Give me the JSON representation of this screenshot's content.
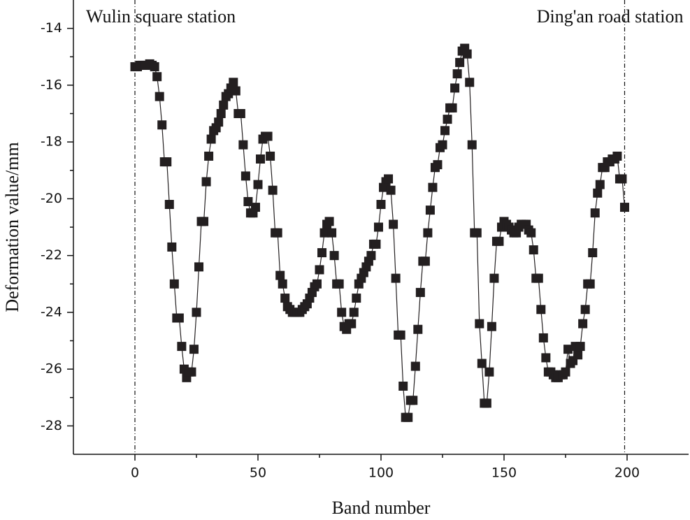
{
  "chart_data": {
    "type": "line",
    "xlabel": "Band number",
    "ylabel": "Deformation value/mm",
    "xlim": [
      -25,
      225
    ],
    "xticks": [
      0,
      50,
      100,
      150,
      200
    ],
    "xminor": [
      25,
      75,
      125,
      175
    ],
    "ylim": [
      -29,
      -13
    ],
    "yticks": [
      -14,
      -16,
      -18,
      -20,
      -22,
      -24,
      -26,
      -28
    ],
    "yminor": [
      -15,
      -17,
      -19,
      -21,
      -23,
      -25,
      -27
    ],
    "annotations": [
      {
        "text": "Wulin square station",
        "x": 0
      },
      {
        "text": "Ding'an road station",
        "x": 199
      }
    ],
    "series": [
      {
        "color": "#231f20",
        "x": [
          0,
          1,
          2,
          3,
          4,
          5,
          6,
          7,
          8,
          9,
          10,
          11,
          12,
          13,
          14,
          15,
          16,
          17,
          18,
          19,
          20,
          21,
          22,
          23,
          24,
          25,
          26,
          27,
          28,
          29,
          30,
          31,
          32,
          33,
          34,
          35,
          36,
          37,
          38,
          39,
          40,
          41,
          42,
          43,
          44,
          45,
          46,
          47,
          48,
          49,
          50,
          51,
          52,
          53,
          54,
          55,
          56,
          57,
          58,
          59,
          60,
          61,
          62,
          63,
          64,
          65,
          66,
          67,
          68,
          69,
          70,
          71,
          72,
          73,
          74,
          75,
          76,
          77,
          78,
          79,
          80,
          81,
          82,
          83,
          84,
          85,
          86,
          87,
          88,
          89,
          90,
          91,
          92,
          93,
          94,
          95,
          96,
          97,
          98,
          99,
          100,
          101,
          102,
          103,
          104,
          105,
          106,
          107,
          108,
          109,
          110,
          111,
          112,
          113,
          114,
          115,
          116,
          117,
          118,
          119,
          120,
          121,
          122,
          123,
          124,
          125,
          126,
          127,
          128,
          129,
          130,
          131,
          132,
          133,
          134,
          135,
          136,
          137,
          138,
          139,
          140,
          141,
          142,
          143,
          144,
          145,
          146,
          147,
          148,
          149,
          150,
          151,
          152,
          153,
          154,
          155,
          156,
          157,
          158,
          159,
          160,
          161,
          162,
          163,
          164,
          165,
          166,
          167,
          168,
          169,
          170,
          171,
          172,
          173,
          174,
          175,
          176,
          177,
          178,
          179,
          180,
          181,
          182,
          183,
          184,
          185,
          186,
          187,
          188,
          189,
          190,
          191,
          192,
          193,
          194,
          195,
          196,
          197,
          198,
          199
        ],
        "values": [
          -15.35,
          -15.35,
          -15.3,
          -15.3,
          -15.3,
          -15.3,
          -15.25,
          -15.3,
          -15.35,
          -15.7,
          -16.4,
          -17.4,
          -18.7,
          -18.7,
          -20.2,
          -21.7,
          -23.0,
          -24.2,
          -24.2,
          -25.2,
          -26.0,
          -26.3,
          -26.1,
          -26.1,
          -25.3,
          -24.0,
          -22.4,
          -20.8,
          -20.8,
          -19.4,
          -18.5,
          -17.9,
          -17.6,
          -17.5,
          -17.3,
          -17.0,
          -16.7,
          -16.4,
          -16.3,
          -16.1,
          -15.9,
          -16.2,
          -17.0,
          -17.0,
          -18.1,
          -19.2,
          -20.1,
          -20.5,
          -20.5,
          -20.3,
          -19.5,
          -18.6,
          -17.9,
          -17.8,
          -17.8,
          -18.5,
          -19.7,
          -21.2,
          -21.2,
          -22.7,
          -23.0,
          -23.5,
          -23.8,
          -23.9,
          -24.0,
          -24.0,
          -24.0,
          -24.0,
          -23.9,
          -23.8,
          -23.7,
          -23.5,
          -23.3,
          -23.1,
          -23.0,
          -22.5,
          -21.9,
          -21.2,
          -20.9,
          -20.8,
          -21.2,
          -22.0,
          -23.0,
          -23.0,
          -24.0,
          -24.5,
          -24.6,
          -24.4,
          -24.4,
          -24.0,
          -23.5,
          -23.0,
          -22.8,
          -22.6,
          -22.4,
          -22.2,
          -22.0,
          -21.6,
          -21.6,
          -21.0,
          -20.2,
          -19.6,
          -19.4,
          -19.3,
          -19.7,
          -20.9,
          -22.8,
          -24.8,
          -24.8,
          -26.6,
          -27.7,
          -27.7,
          -27.1,
          -27.1,
          -25.9,
          -24.6,
          -23.3,
          -22.2,
          -22.2,
          -21.2,
          -20.4,
          -19.6,
          -18.9,
          -18.8,
          -18.2,
          -18.1,
          -17.6,
          -17.2,
          -16.8,
          -16.8,
          -16.1,
          -15.6,
          -15.2,
          -14.8,
          -14.7,
          -14.9,
          -15.9,
          -18.1,
          -21.2,
          -21.2,
          -24.4,
          -25.8,
          -27.2,
          -27.2,
          -26.1,
          -24.5,
          -22.8,
          -21.5,
          -21.5,
          -21.0,
          -20.8,
          -20.9,
          -21.0,
          -21.1,
          -21.2,
          -21.2,
          -21.0,
          -20.9,
          -20.9,
          -20.9,
          -21.1,
          -21.2,
          -21.8,
          -22.8,
          -22.8,
          -23.9,
          -24.9,
          -25.6,
          -26.1,
          -26.1,
          -26.2,
          -26.3,
          -26.3,
          -26.2,
          -26.2,
          -26.1,
          -25.3,
          -25.8,
          -25.7,
          -25.2,
          -25.5,
          -25.2,
          -24.4,
          -23.9,
          -23.0,
          -23.0,
          -21.9,
          -20.5,
          -19.8,
          -19.5,
          -18.9,
          -18.9,
          -18.7,
          -18.7,
          -18.6,
          -18.6,
          -18.5,
          -19.3,
          -19.3,
          -20.3
        ]
      }
    ]
  }
}
